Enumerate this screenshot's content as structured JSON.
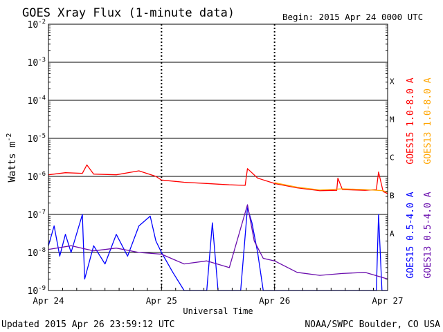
{
  "chart_data": {
    "type": "line",
    "title": "GOES Xray Flux (1-minute data)",
    "begin_text": "Begin:  2015 Apr 24 0000 UTC",
    "xlabel": "Universal Time",
    "ylabel": "Watts m",
    "ylabel_exponent": "-2",
    "x_categories": [
      "Apr 24",
      "Apr 25",
      "Apr 26",
      "Apr 27"
    ],
    "x_range_days": [
      0,
      3
    ],
    "y_scale": "log",
    "ylim": [
      1e-09,
      0.01
    ],
    "y_tick_exponents": [
      "-2",
      "-3",
      "-4",
      "-5",
      "-6",
      "-7",
      "-8",
      "-9"
    ],
    "y_tick_base": "10",
    "flare_classes": [
      {
        "label": "X",
        "value": 0.0001
      },
      {
        "label": "M",
        "value": 1e-05
      },
      {
        "label": "C",
        "value": 1e-06
      },
      {
        "label": "B",
        "value": 1e-07
      },
      {
        "label": "A",
        "value": 1e-08
      }
    ],
    "series": [
      {
        "name": "GOES15 1.0-8.0 A",
        "color": "#ff0000",
        "points": [
          [
            0.0,
            1.1e-06
          ],
          [
            0.15,
            1.25e-06
          ],
          [
            0.3,
            1.2e-06
          ],
          [
            0.34,
            2e-06
          ],
          [
            0.4,
            1.15e-06
          ],
          [
            0.6,
            1.1e-06
          ],
          [
            0.8,
            1.4e-06
          ],
          [
            0.95,
            1e-06
          ],
          [
            1.0,
            8e-07
          ],
          [
            1.2,
            7e-07
          ],
          [
            1.4,
            6.5e-07
          ],
          [
            1.6,
            6e-07
          ],
          [
            1.74,
            5.8e-07
          ],
          [
            1.76,
            1.6e-06
          ],
          [
            1.85,
            9e-07
          ],
          [
            2.0,
            6.5e-07
          ],
          [
            2.2,
            5e-07
          ],
          [
            2.4,
            4.2e-07
          ],
          [
            2.55,
            4.3e-07
          ],
          [
            2.56,
            9e-07
          ],
          [
            2.6,
            4.5e-07
          ],
          [
            2.8,
            4.3e-07
          ],
          [
            2.9,
            4.5e-07
          ],
          [
            2.92,
            1.3e-06
          ],
          [
            2.96,
            4e-07
          ],
          [
            3.0,
            3.5e-07
          ]
        ]
      },
      {
        "name": "GOES13 1.0-8.0 A",
        "color": "#ffa500",
        "points": [
          [
            2.0,
            6.8e-07
          ],
          [
            2.2,
            5.2e-07
          ],
          [
            2.4,
            4.4e-07
          ],
          [
            2.6,
            4.7e-07
          ],
          [
            2.8,
            4.5e-07
          ],
          [
            2.96,
            4.2e-07
          ],
          [
            3.0,
            3.8e-07
          ]
        ]
      },
      {
        "name": "GOES15 0.5-4.0 A",
        "color": "#0000ff",
        "points": [
          [
            0.0,
            1.5e-08
          ],
          [
            0.05,
            5e-08
          ],
          [
            0.1,
            8e-09
          ],
          [
            0.15,
            3e-08
          ],
          [
            0.2,
            1e-08
          ],
          [
            0.3,
            1e-07
          ],
          [
            0.32,
            2e-09
          ],
          [
            0.4,
            1.5e-08
          ],
          [
            0.5,
            5e-09
          ],
          [
            0.6,
            3e-08
          ],
          [
            0.7,
            8e-09
          ],
          [
            0.8,
            5e-08
          ],
          [
            0.9,
            9e-08
          ],
          [
            0.95,
            2e-08
          ],
          [
            1.0,
            1e-08
          ],
          [
            1.1,
            3e-09
          ],
          [
            1.2,
            1e-09
          ],
          [
            1.4,
            1e-09
          ],
          [
            1.45,
            6e-08
          ],
          [
            1.5,
            1e-09
          ],
          [
            1.7,
            1e-09
          ],
          [
            1.76,
            1.5e-07
          ],
          [
            1.8,
            6e-08
          ],
          [
            1.85,
            1e-08
          ],
          [
            1.9,
            1e-09
          ],
          [
            2.9,
            1e-09
          ],
          [
            2.92,
            1e-07
          ],
          [
            2.95,
            1e-09
          ],
          [
            3.0,
            1e-09
          ]
        ]
      },
      {
        "name": "GOES13 0.5-4.0 A",
        "color": "#6a0dad",
        "points": [
          [
            0.0,
            1.2e-08
          ],
          [
            0.2,
            1.5e-08
          ],
          [
            0.4,
            1.1e-08
          ],
          [
            0.6,
            1.3e-08
          ],
          [
            0.8,
            1e-08
          ],
          [
            1.0,
            9e-09
          ],
          [
            1.2,
            5e-09
          ],
          [
            1.4,
            6e-09
          ],
          [
            1.6,
            4e-09
          ],
          [
            1.76,
            1.8e-07
          ],
          [
            1.82,
            2e-08
          ],
          [
            1.9,
            7e-09
          ],
          [
            2.0,
            6e-09
          ],
          [
            2.2,
            3e-09
          ],
          [
            2.4,
            2.5e-09
          ],
          [
            2.6,
            2.8e-09
          ],
          [
            2.8,
            3e-09
          ],
          [
            3.0,
            2e-09
          ]
        ]
      }
    ]
  },
  "footer": {
    "updated": "Updated 2015 Apr 26 23:59:12 UTC",
    "credit": "NOAA/SWPC Boulder, CO USA"
  }
}
